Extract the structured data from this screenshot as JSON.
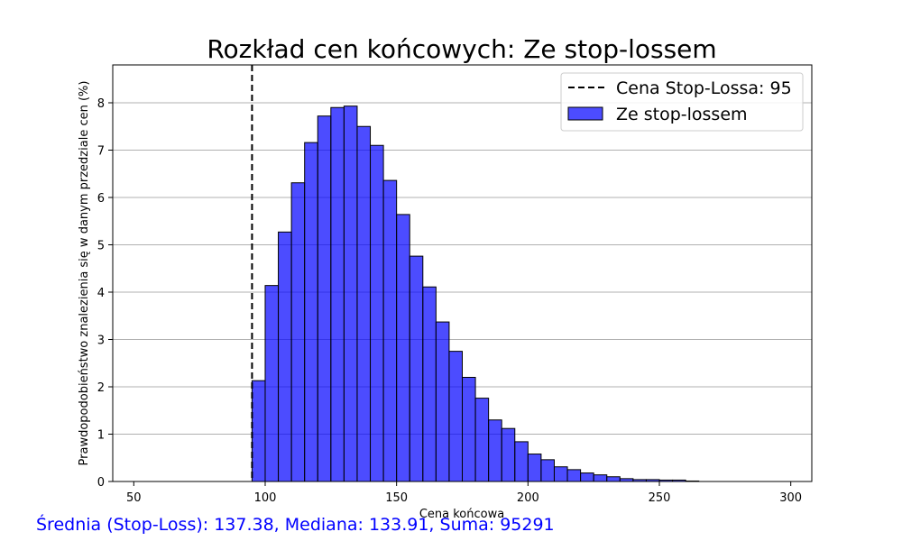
{
  "chart_data": {
    "type": "bar",
    "title": "Rozkład cen końcowych: Ze stop-lossem",
    "xlabel": "Cena końcowa",
    "ylabel": "Prawdopodobieństwo znalezienia się w danym przedziale cen (%)",
    "xlim": [
      42,
      308
    ],
    "ylim": [
      0,
      8.8
    ],
    "xticks": [
      "50",
      "100",
      "150",
      "200",
      "250",
      "300"
    ],
    "yticks": [
      "0",
      "1",
      "2",
      "3",
      "4",
      "5",
      "6",
      "7",
      "8"
    ],
    "grid": "horizontal",
    "legend_position": "top-right",
    "bar_color": "#0000ff",
    "bar_width": 5,
    "series": [
      {
        "name": "Ze stop-lossem",
        "bins": [
          95,
          100,
          105,
          110,
          115,
          120,
          125,
          130,
          135,
          140,
          145,
          150,
          155,
          160,
          165,
          170,
          175,
          180,
          185,
          190,
          195,
          200,
          205,
          210,
          215,
          220,
          225,
          230,
          235,
          240,
          245,
          250,
          255,
          260
        ],
        "values": [
          2.13,
          4.14,
          5.27,
          6.31,
          7.16,
          7.72,
          7.9,
          7.93,
          7.5,
          7.1,
          6.36,
          5.64,
          4.76,
          4.11,
          3.37,
          2.75,
          2.2,
          1.76,
          1.3,
          1.12,
          0.84,
          0.58,
          0.46,
          0.31,
          0.25,
          0.18,
          0.14,
          0.1,
          0.06,
          0.04,
          0.04,
          0.03,
          0.03,
          0.01
        ]
      }
    ],
    "vline": {
      "name": "Cena Stop-Lossa: 95",
      "x": 95,
      "color": "#000000",
      "style": "dashed"
    }
  },
  "footer_text": "Średnia (Stop-Loss): 137.38, Mediana: 133.91, Suma: 95291"
}
